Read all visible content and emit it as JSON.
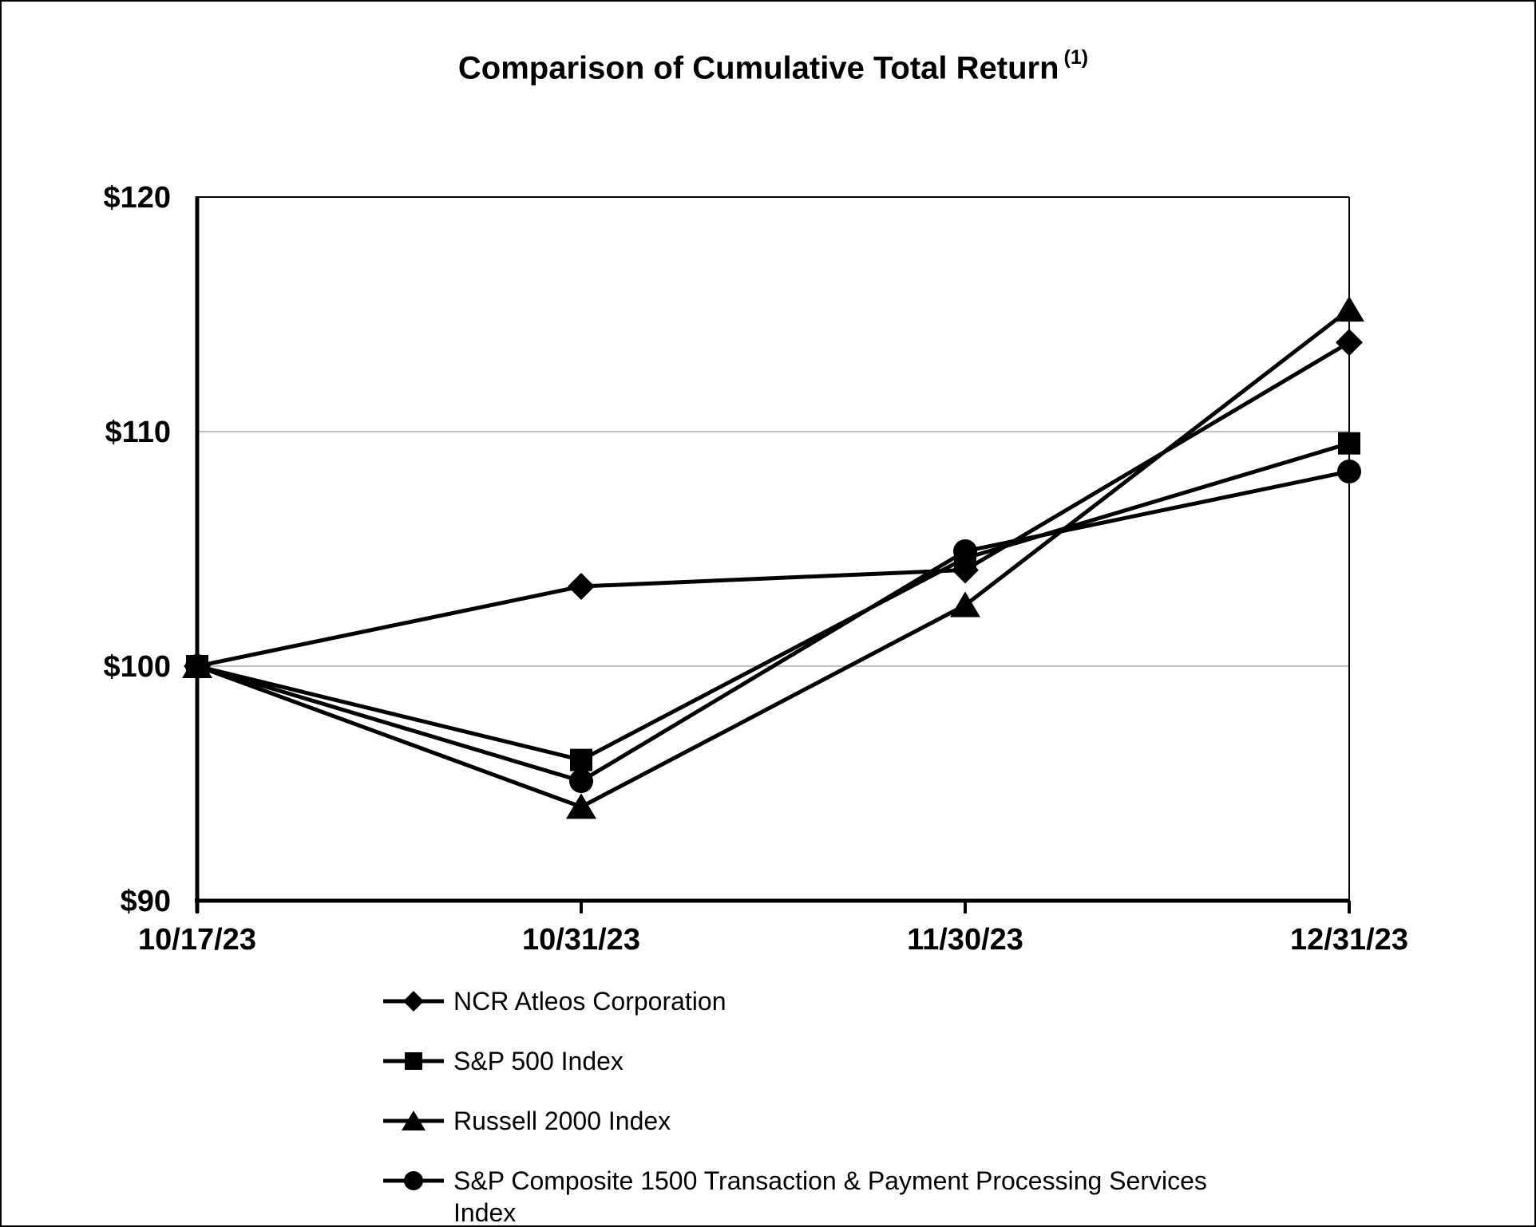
{
  "title": {
    "text": "Comparison of Cumulative Total Return",
    "superscript": "(1)"
  },
  "chart_data": {
    "type": "line",
    "title": "Comparison of Cumulative Total Return (1)",
    "categories": [
      "10/17/23",
      "10/31/23",
      "11/30/23",
      "12/31/23"
    ],
    "series": [
      {
        "name": "NCR Atleos Corporation",
        "marker": "diamond",
        "color": "#000000",
        "values": [
          100,
          103.4,
          104.1,
          113.8
        ]
      },
      {
        "name": "S&P 500 Index",
        "marker": "square",
        "color": "#000000",
        "values": [
          100,
          96.0,
          104.6,
          109.5
        ]
      },
      {
        "name": "Russell 2000 Index",
        "marker": "triangle",
        "color": "#000000",
        "values": [
          100,
          94.0,
          102.6,
          115.2
        ]
      },
      {
        "name": "S&P Composite 1500 Transaction & Payment Processing Services Index",
        "marker": "circle",
        "color": "#000000",
        "values": [
          100,
          95.1,
          104.9,
          108.3
        ]
      }
    ],
    "ylim": [
      90,
      120
    ],
    "y_tick_interval": 10,
    "y_tick_labels": [
      "$90",
      "$100",
      "$110",
      "$120"
    ],
    "x_tick_labels": [
      "10/17/23",
      "10/31/23",
      "11/30/23",
      "12/31/23"
    ],
    "currency_prefix": "$",
    "grid": "horizontal",
    "grid_color": "#c0c0c0",
    "axis_color": "#000000",
    "background": "#ffffff",
    "legend_position": "bottom-left"
  }
}
